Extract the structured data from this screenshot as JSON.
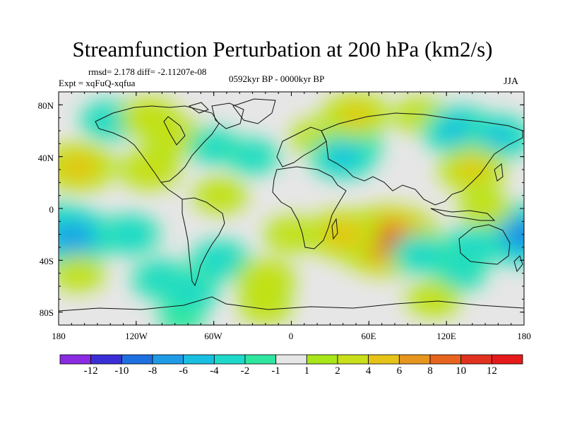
{
  "figure": {
    "title": "Streamfunction Perturbation at 200 hPa (km2/s)",
    "stats": "rmsd= 2.178 diff= -2.11207e-08",
    "experiment": "Expt = xqFuQ-xqfua",
    "period": "0592kyr BP - 0000kyr BP",
    "season": "JJA"
  },
  "axes": {
    "y_labels": [
      "80N",
      "40N",
      "0",
      "40S",
      "80S"
    ],
    "x_labels": [
      "180",
      "120W",
      "60W",
      "0",
      "60E",
      "120E",
      "180"
    ]
  },
  "colorbar": {
    "labels": [
      "-12",
      "-10",
      "-8",
      "-6",
      "-4",
      "-2",
      "-1",
      "1",
      "2",
      "4",
      "6",
      "8",
      "10",
      "12"
    ],
    "colors": [
      "#8a2be2",
      "#3a2fd6",
      "#1e6fe0",
      "#1f9be6",
      "#19bfe0",
      "#1ed9c9",
      "#2ee6a0",
      "#e6e6e6",
      "#a8e619",
      "#c9df19",
      "#e6c319",
      "#e6951e",
      "#e6641e",
      "#e0321e",
      "#e61a1a"
    ]
  },
  "map_fields": [
    {
      "lon": -165,
      "lat": 32,
      "val": 5
    },
    {
      "lon": 180,
      "lat": -20,
      "val": -8
    },
    {
      "lon": -180,
      "lat": -20,
      "val": -8
    },
    {
      "lon": -170,
      "lat": -22,
      "val": -7
    },
    {
      "lon": -165,
      "lat": -50,
      "val": 2
    },
    {
      "lon": -140,
      "lat": 68,
      "val": -3
    },
    {
      "lon": -110,
      "lat": 70,
      "val": 3
    },
    {
      "lon": -90,
      "lat": 55,
      "val": 3
    },
    {
      "lon": -110,
      "lat": 30,
      "val": 3
    },
    {
      "lon": -60,
      "lat": 48,
      "val": -2
    },
    {
      "lon": -55,
      "lat": 10,
      "val": 2
    },
    {
      "lon": -125,
      "lat": -20,
      "val": -3
    },
    {
      "lon": -100,
      "lat": -55,
      "val": -3
    },
    {
      "lon": -80,
      "lat": -65,
      "val": -3
    },
    {
      "lon": -85,
      "lat": -85,
      "val": -1
    },
    {
      "lon": -55,
      "lat": -40,
      "val": -3
    },
    {
      "lon": -20,
      "lat": -55,
      "val": 3
    },
    {
      "lon": -20,
      "lat": -75,
      "val": 2
    },
    {
      "lon": -30,
      "lat": 40,
      "val": -2
    },
    {
      "lon": 20,
      "lat": 55,
      "val": 2
    },
    {
      "lon": 50,
      "lat": 50,
      "val": -2
    },
    {
      "lon": 40,
      "lat": 40,
      "val": -4
    },
    {
      "lon": 50,
      "lat": 72,
      "val": 4
    },
    {
      "lon": 100,
      "lat": 72,
      "val": 2
    },
    {
      "lon": 130,
      "lat": 60,
      "val": -5
    },
    {
      "lon": 160,
      "lat": 55,
      "val": -4
    },
    {
      "lon": 140,
      "lat": 30,
      "val": 4
    },
    {
      "lon": 0,
      "lat": -20,
      "val": 2
    },
    {
      "lon": 75,
      "lat": -25,
      "val": 10
    },
    {
      "lon": 40,
      "lat": -20,
      "val": 5
    },
    {
      "lon": 100,
      "lat": -35,
      "val": -3
    },
    {
      "lon": 140,
      "lat": -30,
      "val": -3
    },
    {
      "lon": 130,
      "lat": -50,
      "val": -2
    },
    {
      "lon": 110,
      "lat": -70,
      "val": 2
    },
    {
      "lon": 150,
      "lat": 0,
      "val": 2
    }
  ]
}
